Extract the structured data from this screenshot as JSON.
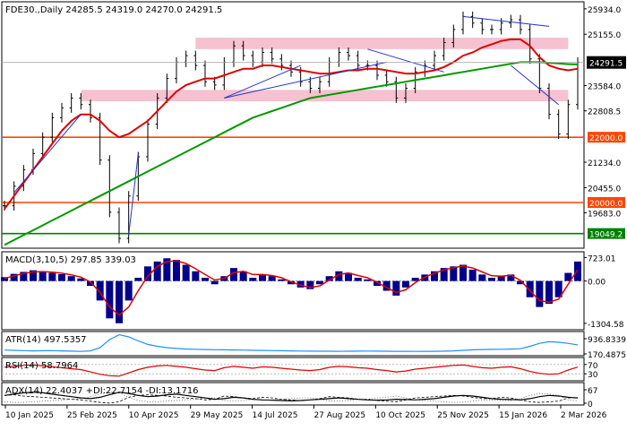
{
  "chart_data": [
    {
      "type": "line",
      "title": "FDE30.,Daily  24285.5 24319.0 24270.0 24291.5",
      "x_tick_labels": [
        "10 Jan 2025",
        "25 Feb 2025",
        "10 Apr 2025",
        "29 May 2025",
        "14 Jul 2025",
        "27 Aug 2025",
        "10 Oct 2025",
        "25 Nov 2025",
        "15 Jan 2026",
        "2 Mar 2026"
      ],
      "y_tick_labels": [
        "25934.0",
        "25155.0",
        "24291.5",
        "23584.0",
        "22808.5",
        "22000.0",
        "21234.0",
        "20455.0",
        "20000.0",
        "19683.0",
        "19049.2"
      ],
      "ylim": [
        18600,
        26150
      ],
      "price_tag": "24291.5",
      "support_levels": [
        {
          "label": "22000.0",
          "value": 22000.0
        },
        {
          "label": "20000.0",
          "value": 20000.0
        },
        {
          "label": "19049.2",
          "value": 19049.2
        }
      ],
      "resistance_zones": [
        [
          24700,
          25050
        ],
        [
          23100,
          23450
        ]
      ],
      "series": [
        {
          "name": "",
          "role": "price",
          "values": [
            19900,
            20500,
            21000,
            21500,
            22000,
            22600,
            22900,
            23200,
            23000,
            22600,
            21300,
            19700,
            18900,
            20200,
            21400,
            22400,
            23200,
            23800,
            24300,
            24500,
            24200,
            23700,
            23600,
            24300,
            24800,
            24500,
            24300,
            24600,
            24400,
            24200,
            24000,
            23700,
            23500,
            23700,
            24300,
            24600,
            24500,
            24200,
            24200,
            23900,
            23700,
            23200,
            23500,
            24000,
            24200,
            24500,
            24900,
            25300,
            25700,
            25500,
            25300,
            25300,
            25500,
            25600,
            25300,
            24400,
            23500,
            22700,
            22100,
            23000,
            24300
          ]
        },
        {
          "name": "",
          "role": "fast-ma",
          "color": "#e00000",
          "values": [
            19800,
            20200,
            20600,
            21000,
            21400,
            21800,
            22200,
            22500,
            22700,
            22700,
            22500,
            22200,
            22000,
            22100,
            22300,
            22500,
            22800,
            23100,
            23400,
            23600,
            23700,
            23800,
            23800,
            23900,
            24000,
            24100,
            24100,
            24200,
            24200,
            24150,
            24100,
            24050,
            24000,
            23950,
            23950,
            24000,
            24050,
            24050,
            24100,
            24100,
            24050,
            24000,
            23950,
            23950,
            24000,
            24050,
            24150,
            24300,
            24500,
            24600,
            24750,
            24850,
            24950,
            25000,
            25000,
            24800,
            24450,
            24200,
            24100,
            24050,
            24100
          ]
        },
        {
          "name": "",
          "role": "slow-ma",
          "color": "#009900",
          "values": [
            18700,
            18850,
            19000,
            19150,
            19300,
            19450,
            19600,
            19750,
            19900,
            20050,
            20200,
            20350,
            20500,
            20650,
            20800,
            20950,
            21100,
            21250,
            21400,
            21550,
            21700,
            21850,
            22000,
            22150,
            22300,
            22450,
            22600,
            22700,
            22800,
            22900,
            23000,
            23100,
            23200,
            23250,
            23300,
            23350,
            23400,
            23450,
            23500,
            23550,
            23600,
            23650,
            23700,
            23750,
            23800,
            23850,
            23900,
            23950,
            24000,
            24050,
            24100,
            24150,
            24200,
            24250,
            24300,
            24300,
            24300,
            24280,
            24260,
            24240,
            24230
          ]
        }
      ]
    },
    {
      "type": "bar",
      "title": "MACD(3,10,5) 297.85 339.03",
      "y_tick_labels": [
        "723.01",
        "0.00",
        "-1304.58"
      ],
      "ylim": [
        -1500,
        900
      ],
      "series": [
        {
          "name": "",
          "role": "histogram",
          "color": "#00008b",
          "values": [
            120,
            220,
            280,
            330,
            300,
            250,
            210,
            150,
            80,
            -150,
            -600,
            -1150,
            -1300,
            -600,
            100,
            450,
            600,
            700,
            650,
            500,
            300,
            100,
            -100,
            150,
            400,
            300,
            100,
            200,
            150,
            50,
            -100,
            -200,
            -250,
            -100,
            150,
            300,
            250,
            100,
            50,
            -150,
            -300,
            -450,
            -200,
            100,
            200,
            300,
            400,
            450,
            500,
            350,
            200,
            100,
            150,
            200,
            -100,
            -500,
            -800,
            -700,
            -500,
            250,
            600
          ]
        },
        {
          "name": "",
          "role": "signal",
          "color": "#e00000",
          "values": [
            80,
            160,
            230,
            280,
            290,
            270,
            240,
            190,
            120,
            -30,
            -350,
            -800,
            -1050,
            -800,
            -300,
            150,
            450,
            600,
            620,
            540,
            380,
            200,
            30,
            80,
            260,
            300,
            200,
            200,
            170,
            100,
            -20,
            -130,
            -200,
            -150,
            30,
            200,
            250,
            170,
            100,
            -40,
            -200,
            -350,
            -270,
            -50,
            120,
            240,
            340,
            410,
            460,
            400,
            280,
            160,
            150,
            180,
            20,
            -300,
            -600,
            -650,
            -560,
            -100,
            350
          ]
        }
      ]
    },
    {
      "type": "line",
      "title": "ATR(14) 497.5357",
      "y_tick_labels": [
        "936.8339",
        "170.4875"
      ],
      "ylim": [
        100,
        1000
      ],
      "series": [
        {
          "name": "",
          "color": "#1e90ff",
          "values": [
            310,
            300,
            290,
            280,
            285,
            290,
            280,
            270,
            260,
            280,
            400,
            700,
            880,
            800,
            650,
            520,
            450,
            400,
            370,
            350,
            340,
            330,
            325,
            320,
            315,
            310,
            300,
            295,
            290,
            285,
            280,
            275,
            270,
            268,
            266,
            265,
            268,
            270,
            272,
            270,
            268,
            265,
            262,
            260,
            262,
            265,
            270,
            280,
            300,
            320,
            330,
            335,
            340,
            345,
            360,
            450,
            560,
            620,
            600,
            560,
            500
          ]
        }
      ]
    },
    {
      "type": "line",
      "title": "RSI(14) 58.7964",
      "y_tick_labels": [
        "70",
        "30"
      ],
      "ylim": [
        0,
        100
      ],
      "series": [
        {
          "name": "",
          "color": "#e00000",
          "values": [
            58,
            62,
            66,
            68,
            64,
            60,
            56,
            52,
            48,
            38,
            28,
            22,
            20,
            34,
            48,
            58,
            64,
            66,
            62,
            58,
            52,
            46,
            44,
            56,
            62,
            58,
            54,
            60,
            58,
            54,
            50,
            46,
            44,
            48,
            58,
            62,
            60,
            56,
            54,
            48,
            44,
            38,
            42,
            50,
            54,
            58,
            62,
            66,
            68,
            62,
            56,
            54,
            58,
            60,
            52,
            40,
            32,
            28,
            30,
            46,
            59
          ]
        }
      ]
    },
    {
      "type": "line",
      "title": "ADX(14) 22.4037 +DI:22.7154 -DI:13.1716",
      "y_tick_labels": [
        "67",
        "0"
      ],
      "ylim": [
        0,
        70
      ],
      "series": [
        {
          "name": "",
          "role": "adx",
          "color": "#000000",
          "values": [
            30,
            34,
            38,
            40,
            38,
            34,
            30,
            26,
            22,
            20,
            24,
            32,
            40,
            36,
            30,
            26,
            28,
            32,
            34,
            30,
            26,
            22,
            18,
            20,
            24,
            22,
            18,
            16,
            15,
            14,
            13,
            14,
            16,
            18,
            20,
            22,
            20,
            18,
            16,
            15,
            16,
            18,
            17,
            16,
            18,
            20,
            24,
            28,
            30,
            28,
            24,
            20,
            18,
            17,
            16,
            20,
            26,
            30,
            28,
            24,
            22
          ]
        },
        {
          "name": "",
          "role": "+di",
          "color": "#000000",
          "values": [
            30,
            32,
            28,
            26,
            24,
            22,
            20,
            18,
            16,
            12,
            8,
            6,
            10,
            24,
            30,
            32,
            30,
            28,
            24,
            22,
            20,
            16,
            18,
            28,
            26,
            22,
            20,
            24,
            22,
            18,
            16,
            14,
            16,
            20,
            26,
            24,
            22,
            18,
            18,
            14,
            12,
            10,
            16,
            22,
            24,
            26,
            28,
            30,
            28,
            24,
            20,
            20,
            24,
            22,
            16,
            10,
            8,
            10,
            12,
            22,
            23
          ]
        },
        {
          "name": "",
          "role": "-di",
          "color": "#000000",
          "values": [
            10,
            8,
            8,
            10,
            12,
            14,
            16,
            18,
            20,
            26,
            34,
            40,
            38,
            24,
            14,
            10,
            10,
            12,
            14,
            16,
            18,
            22,
            22,
            14,
            12,
            14,
            18,
            14,
            16,
            18,
            20,
            22,
            22,
            18,
            12,
            12,
            14,
            18,
            18,
            22,
            24,
            28,
            22,
            16,
            14,
            12,
            10,
            8,
            9,
            12,
            16,
            16,
            14,
            14,
            20,
            30,
            36,
            34,
            30,
            16,
            13
          ]
        }
      ]
    }
  ]
}
